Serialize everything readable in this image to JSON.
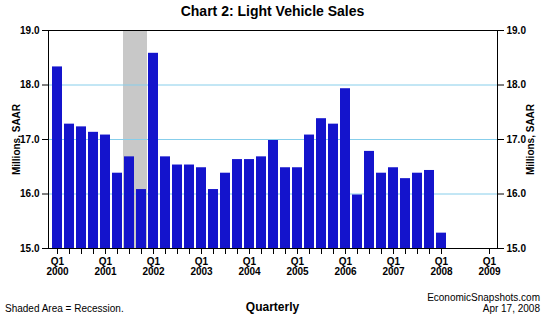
{
  "chart_data": {
    "type": "bar",
    "title": "Chart 2: Light Vehicle Sales",
    "ylabel": "Millions, SAAR",
    "y2label": "Millions, SAAR",
    "categories": [
      "Q1\n2000",
      null,
      null,
      null,
      "Q1\n2001",
      null,
      null,
      null,
      "Q1\n2002",
      null,
      null,
      null,
      "Q1\n2003",
      null,
      null,
      null,
      "Q1\n2004",
      null,
      null,
      null,
      "Q1\n2005",
      null,
      null,
      null,
      "Q1\n2006",
      null,
      null,
      null,
      "Q1\n2007",
      null,
      null,
      null,
      "Q1\n2008",
      null,
      null,
      null,
      "Q1\n2009"
    ],
    "values": [
      18.35,
      17.3,
      17.25,
      17.15,
      17.1,
      16.4,
      16.7,
      16.1,
      18.6,
      16.7,
      16.55,
      16.55,
      16.5,
      16.1,
      16.4,
      16.65,
      16.65,
      16.7,
      17.0,
      16.5,
      16.5,
      17.1,
      17.4,
      17.3,
      17.95,
      16.0,
      16.8,
      16.4,
      16.5,
      16.3,
      16.4,
      16.45,
      15.3,
      null,
      null,
      null,
      null
    ],
    "color": "#1414cc",
    "shaded_positions": [
      6,
      7
    ],
    "ylim": [
      15,
      19
    ],
    "yticks": [
      15,
      16,
      17,
      18,
      19
    ],
    "y2lim": [
      15,
      19
    ],
    "y2ticks": [
      15,
      16,
      17,
      18,
      19
    ],
    "grid": true,
    "annotations": [
      "Shaded Area = Recession.",
      "Quarterly",
      "EconomicSnapshots.com\nApr 17, 2008"
    ]
  }
}
